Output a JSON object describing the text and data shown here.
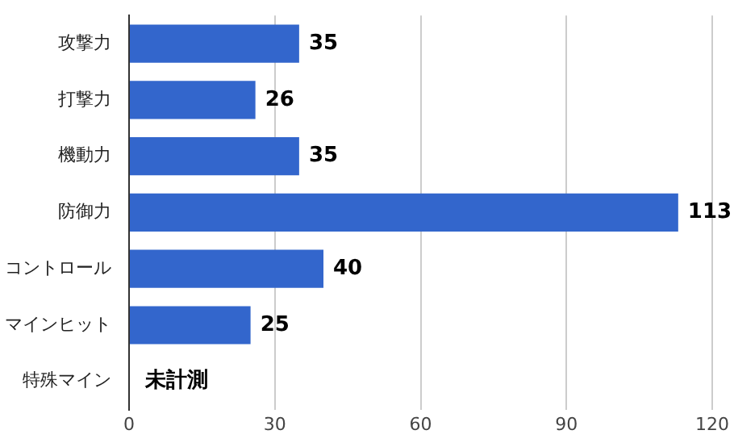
{
  "chart_data": {
    "type": "bar",
    "orientation": "horizontal",
    "categories": [
      "攻撃力",
      "打撃力",
      "機動力",
      "防御力",
      "コントロール",
      "マインヒット",
      "特殊マイン"
    ],
    "values": [
      35,
      26,
      35,
      113,
      40,
      25,
      null
    ],
    "value_labels": [
      "35",
      "26",
      "35",
      "113",
      "40",
      "25",
      "未計測"
    ],
    "color": "#3366cc",
    "xlim": [
      0,
      120
    ],
    "xticks": [
      0,
      30,
      60,
      90,
      120
    ],
    "grid": "x"
  }
}
